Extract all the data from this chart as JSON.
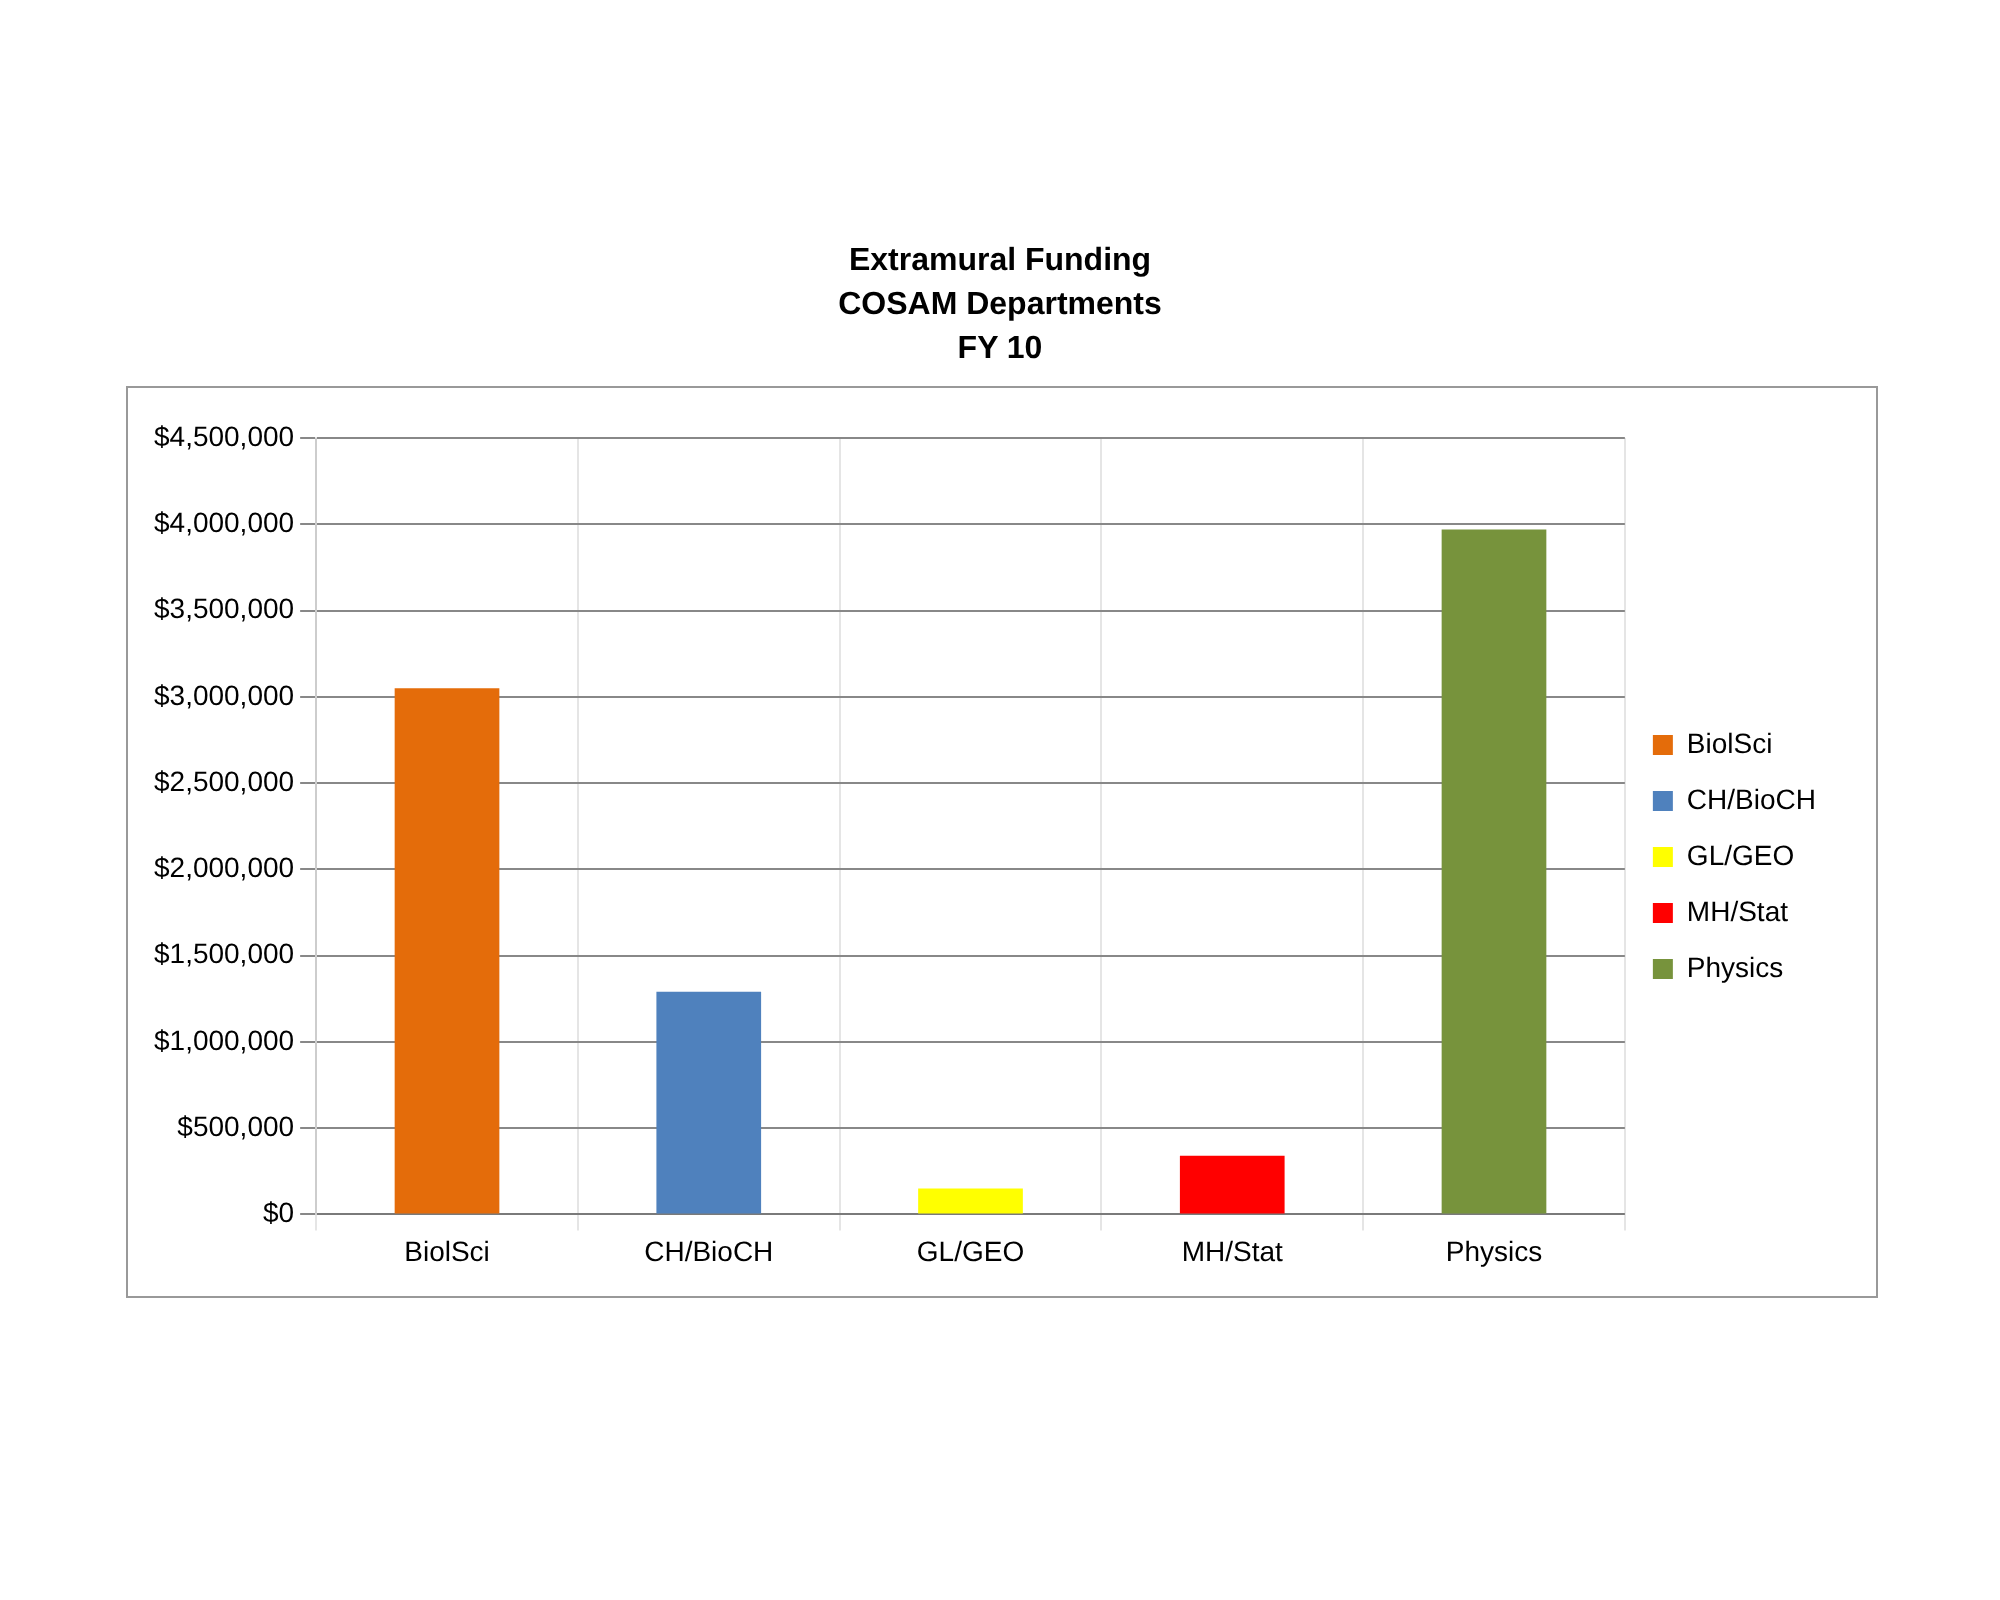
{
  "chart_data": {
    "type": "bar",
    "title": "Extramural Funding",
    "subtitle": "COSAM Departments\nFY 10",
    "categories": [
      "BiolSci",
      "CH/BioCH",
      "GL/GEO",
      "MH/Stat",
      "Physics"
    ],
    "series": [
      {
        "name": "BiolSci",
        "color": "#e46c0a",
        "values": [
          3050000,
          null,
          null,
          null,
          null
        ]
      },
      {
        "name": "CH/BioCH",
        "color": "#4f81bd",
        "values": [
          null,
          1290000,
          null,
          null,
          null
        ]
      },
      {
        "name": "GL/GEO",
        "color": "#ffff00",
        "values": [
          null,
          null,
          150000,
          null,
          null
        ]
      },
      {
        "name": "MH/Stat",
        "color": "#ff0000",
        "values": [
          null,
          null,
          null,
          340000,
          null
        ]
      },
      {
        "name": "Physics",
        "color": "#77933c",
        "values": [
          null,
          null,
          null,
          null,
          3970000
        ]
      }
    ],
    "ylim": [
      0,
      4500000
    ],
    "yticks": [
      {
        "value": 0,
        "label": "$0"
      },
      {
        "value": 500000,
        "label": "$500,000"
      },
      {
        "value": 1000000,
        "label": "$1,000,000"
      },
      {
        "value": 1500000,
        "label": "$1,500,000"
      },
      {
        "value": 2000000,
        "label": "$2,000,000"
      },
      {
        "value": 2500000,
        "label": "$2,500,000"
      },
      {
        "value": 3000000,
        "label": "$3,000,000"
      },
      {
        "value": 3500000,
        "label": "$3,500,000"
      },
      {
        "value": 4000000,
        "label": "$4,000,000"
      },
      {
        "value": 4500000,
        "label": "$4,500,000"
      }
    ],
    "grid": true,
    "legend": "right"
  }
}
